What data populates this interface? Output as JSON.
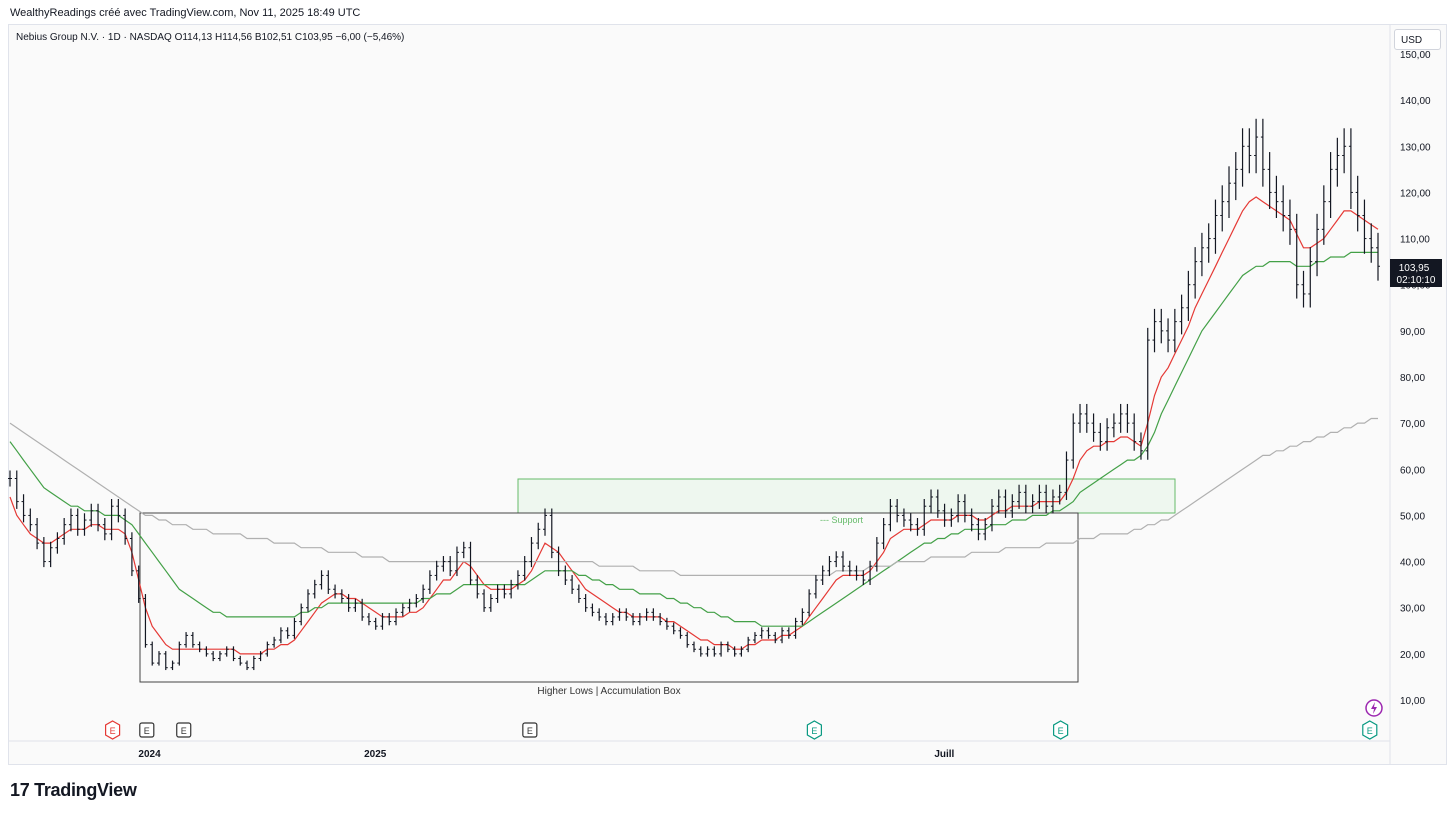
{
  "header": {
    "text": "WealthyReadings créé avec TradingView.com, Nov 11, 2025 18:49 UTC"
  },
  "legend": {
    "text": "Nebius Group N.V. · 1D · NASDAQ  O114,13  H114,56  B102,51  C103,95  −6,00 (−5,46%)"
  },
  "currency": "USD",
  "price_tag": {
    "price": "103,95",
    "countdown": "02:10:10"
  },
  "footer": {
    "brand": "TradingView"
  },
  "colors": {
    "ma_fast": "#e53935",
    "ma_mid": "#43a047",
    "ma_slow": "#b0b0b0",
    "box": "#333333",
    "zone_fill": "#e8f5e9",
    "zone_stroke": "#66bb6a"
  },
  "chart_data": {
    "type": "line",
    "title": "",
    "y_axis": {
      "min": 10,
      "max": 150,
      "ticks": [
        10,
        20,
        30,
        40,
        50,
        60,
        70,
        80,
        90,
        100,
        110,
        120,
        130,
        140,
        150
      ],
      "tick_labels": [
        "10,00",
        "20,00",
        "30,00",
        "40,00",
        "50,00",
        "60,00",
        "70,00",
        "80,00",
        "90,00",
        "100,00",
        "110,00",
        "120,00",
        "130,00",
        "140,00",
        "150,00"
      ]
    },
    "x_axis": {
      "labels": [
        {
          "label": "2024",
          "at": 0.102
        },
        {
          "label": "2025",
          "at": 0.267
        },
        {
          "label": "Juill",
          "at": 0.683
        }
      ]
    },
    "price_series": [
      58,
      53,
      50,
      48,
      44,
      40,
      43,
      45,
      48,
      50,
      47,
      49,
      51,
      48,
      46,
      52,
      50,
      45,
      38,
      32,
      22,
      18,
      20,
      17,
      18,
      22,
      24,
      22,
      21,
      20,
      19,
      20,
      21,
      19,
      18,
      17,
      19,
      20,
      22,
      23,
      25,
      24,
      27,
      30,
      33,
      35,
      37,
      34,
      33,
      32,
      30,
      31,
      28,
      27,
      26,
      28,
      27,
      29,
      30,
      31,
      32,
      34,
      37,
      39,
      40,
      38,
      42,
      43,
      36,
      33,
      30,
      32,
      34,
      33,
      35,
      37,
      40,
      44,
      47,
      50,
      42,
      38,
      36,
      34,
      32,
      30,
      29,
      28,
      27,
      28,
      29,
      28,
      27,
      28,
      29,
      28,
      27,
      26,
      25,
      24,
      22,
      21,
      20,
      21,
      20,
      22,
      21,
      20,
      21,
      23,
      24,
      25,
      24,
      23,
      25,
      24,
      27,
      29,
      33,
      36,
      38,
      40,
      41,
      39,
      38,
      37,
      36,
      39,
      44,
      48,
      52,
      50,
      49,
      48,
      47,
      52,
      54,
      51,
      49,
      50,
      53,
      50,
      48,
      46,
      48,
      52,
      54,
      51,
      53,
      55,
      52,
      53,
      55,
      52,
      54,
      55,
      62,
      70,
      72,
      70,
      68,
      66,
      69,
      70,
      72,
      70,
      66,
      64,
      88,
      92,
      90,
      88,
      92,
      95,
      100,
      105,
      108,
      110,
      115,
      118,
      122,
      125,
      130,
      128,
      132,
      125,
      120,
      118,
      115,
      112,
      100,
      98,
      105,
      112,
      118,
      125,
      128,
      130,
      120,
      115,
      110,
      108,
      104
    ],
    "series": [
      {
        "name": "",
        "type": "ma_fast",
        "values": [
          54,
          50,
          48,
          46,
          45,
          44,
          44,
          45,
          46,
          47,
          47,
          47,
          48,
          48,
          47,
          47,
          47,
          46,
          42,
          36,
          30,
          26,
          24,
          22,
          21,
          21,
          21,
          21,
          21,
          21,
          21,
          21,
          21,
          21,
          20,
          20,
          20,
          20,
          21,
          21,
          22,
          22,
          23,
          25,
          27,
          29,
          31,
          32,
          33,
          33,
          32,
          32,
          31,
          30,
          29,
          28,
          28,
          28,
          28,
          29,
          29,
          30,
          32,
          34,
          36,
          36,
          38,
          40,
          39,
          37,
          35,
          34,
          34,
          34,
          34,
          35,
          36,
          38,
          41,
          44,
          43,
          42,
          40,
          38,
          36,
          34,
          33,
          32,
          31,
          30,
          29,
          29,
          28,
          28,
          28,
          28,
          28,
          27,
          27,
          26,
          25,
          24,
          23,
          23,
          22,
          22,
          22,
          21,
          21,
          22,
          22,
          23,
          23,
          23,
          24,
          24,
          25,
          26,
          28,
          30,
          32,
          34,
          36,
          37,
          37,
          37,
          37,
          38,
          40,
          42,
          45,
          46,
          47,
          47,
          47,
          48,
          49,
          49,
          49,
          49,
          50,
          50,
          50,
          49,
          49,
          50,
          51,
          51,
          52,
          52,
          52,
          52,
          53,
          53,
          53,
          53,
          55,
          58,
          62,
          64,
          65,
          65,
          66,
          66,
          67,
          67,
          66,
          65,
          70,
          76,
          80,
          82,
          85,
          88,
          91,
          95,
          98,
          101,
          104,
          107,
          110,
          113,
          116,
          118,
          119,
          118,
          117,
          116,
          115,
          114,
          111,
          108,
          108,
          109,
          110,
          112,
          114,
          116,
          116,
          115,
          114,
          113,
          112
        ]
      },
      {
        "name": "",
        "type": "ma_mid",
        "values": [
          66,
          64,
          62,
          60,
          58,
          56,
          55,
          54,
          53,
          52,
          52,
          51,
          51,
          51,
          50,
          50,
          50,
          49,
          48,
          46,
          44,
          42,
          40,
          38,
          36,
          34,
          33,
          32,
          31,
          30,
          29,
          29,
          28,
          28,
          28,
          28,
          28,
          28,
          28,
          28,
          28,
          28,
          28,
          29,
          29,
          30,
          30,
          31,
          31,
          31,
          31,
          31,
          31,
          31,
          31,
          31,
          31,
          31,
          31,
          31,
          31,
          32,
          32,
          33,
          33,
          33,
          34,
          35,
          35,
          35,
          35,
          35,
          35,
          35,
          35,
          35,
          35,
          36,
          37,
          38,
          38,
          38,
          38,
          38,
          37,
          37,
          36,
          36,
          35,
          35,
          34,
          34,
          34,
          33,
          33,
          33,
          33,
          32,
          32,
          31,
          31,
          30,
          30,
          29,
          29,
          28,
          28,
          27,
          27,
          27,
          27,
          26,
          26,
          26,
          26,
          26,
          26,
          26,
          27,
          28,
          29,
          30,
          31,
          32,
          33,
          34,
          35,
          36,
          37,
          38,
          39,
          40,
          41,
          42,
          43,
          44,
          44,
          45,
          45,
          46,
          46,
          47,
          47,
          47,
          47,
          48,
          48,
          48,
          49,
          49,
          49,
          50,
          50,
          50,
          51,
          51,
          52,
          53,
          55,
          56,
          57,
          58,
          59,
          60,
          61,
          62,
          62,
          63,
          65,
          68,
          72,
          75,
          78,
          81,
          84,
          87,
          90,
          92,
          94,
          96,
          98,
          100,
          102,
          103,
          104,
          104,
          105,
          105,
          105,
          105,
          104,
          104,
          104,
          105,
          105,
          106,
          106,
          106,
          107,
          107,
          107,
          107,
          107
        ]
      },
      {
        "name": "",
        "type": "ma_slow",
        "values": [
          70,
          69,
          68,
          67,
          66,
          65,
          64,
          63,
          62,
          61,
          60,
          59,
          58,
          57,
          56,
          55,
          54,
          53,
          52,
          51,
          50,
          50,
          49,
          49,
          48,
          48,
          48,
          47,
          47,
          47,
          46,
          46,
          46,
          46,
          46,
          45,
          45,
          45,
          45,
          44,
          44,
          44,
          44,
          43,
          43,
          43,
          43,
          42,
          42,
          42,
          42,
          42,
          41,
          41,
          41,
          41,
          40,
          40,
          40,
          40,
          40,
          40,
          40,
          40,
          40,
          40,
          40,
          40,
          40,
          40,
          40,
          40,
          40,
          40,
          40,
          40,
          40,
          40,
          40,
          40,
          40,
          40,
          40,
          40,
          40,
          40,
          40,
          39,
          39,
          39,
          39,
          39,
          39,
          38,
          38,
          38,
          38,
          38,
          38,
          37,
          37,
          37,
          37,
          37,
          37,
          37,
          37,
          37,
          37,
          37,
          37,
          37,
          37,
          37,
          37,
          37,
          37,
          37,
          37,
          37,
          37,
          37,
          38,
          38,
          38,
          38,
          38,
          39,
          39,
          39,
          39,
          40,
          40,
          40,
          40,
          40,
          41,
          41,
          41,
          41,
          41,
          41,
          42,
          42,
          42,
          42,
          42,
          43,
          43,
          43,
          43,
          43,
          43,
          44,
          44,
          44,
          44,
          44,
          45,
          45,
          45,
          46,
          46,
          46,
          46,
          46,
          47,
          47,
          48,
          48,
          49,
          49,
          50,
          51,
          52,
          53,
          54,
          55,
          56,
          57,
          58,
          59,
          60,
          61,
          62,
          63,
          63,
          64,
          64,
          65,
          65,
          66,
          66,
          67,
          67,
          68,
          68,
          69,
          69,
          70,
          70,
          71,
          71
        ]
      }
    ],
    "annotations": {
      "box_label": "Higher Lows | Accumulation Box",
      "support_label": "--- Support",
      "events": [
        {
          "label": "E",
          "at": 0.075,
          "style": "red"
        },
        {
          "label": "E",
          "at": 0.1,
          "style": "dark"
        },
        {
          "label": "E",
          "at": 0.127,
          "style": "dark"
        },
        {
          "label": "E",
          "at": 0.38,
          "style": "dark"
        },
        {
          "label": "E",
          "at": 0.588,
          "style": "green"
        },
        {
          "label": "E",
          "at": 0.768,
          "style": "green"
        },
        {
          "label": "E",
          "at": 0.994,
          "style": "green"
        }
      ]
    }
  }
}
